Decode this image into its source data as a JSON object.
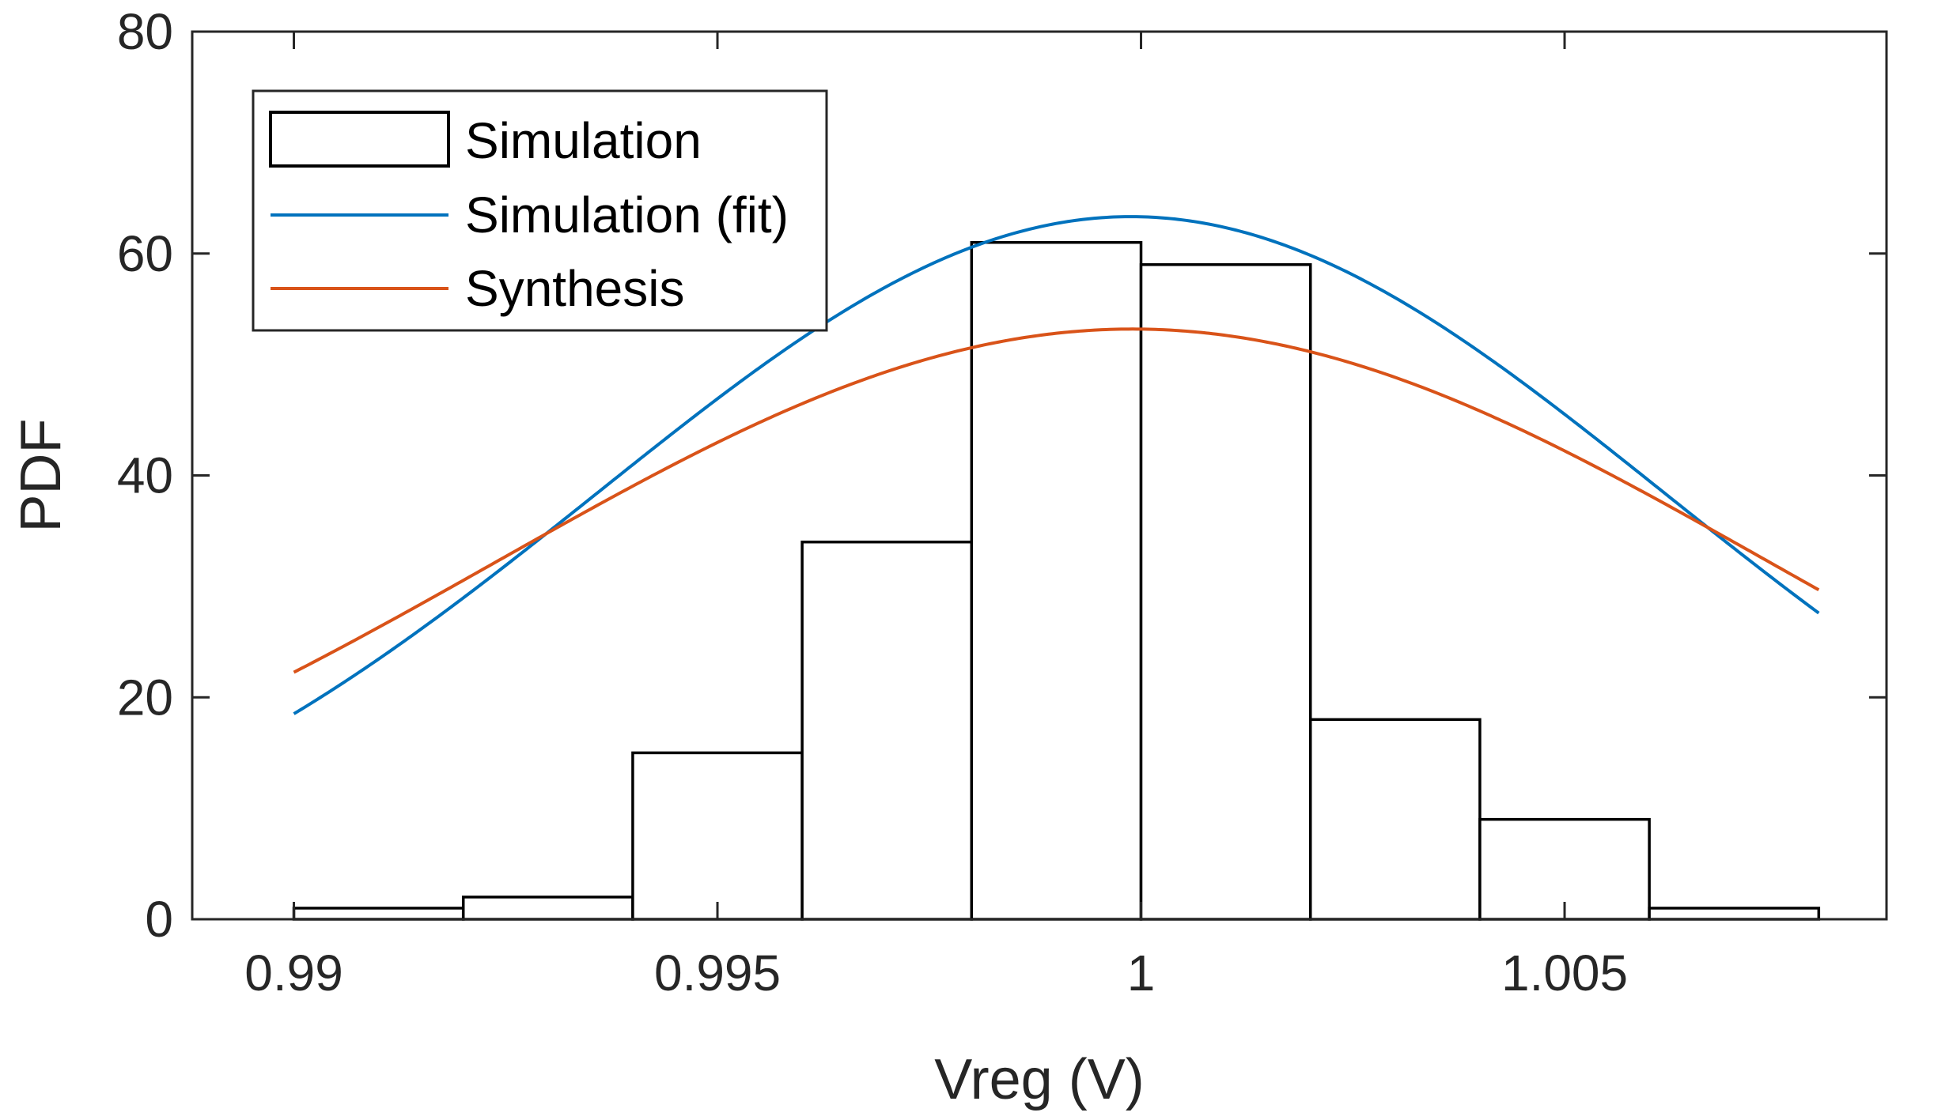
{
  "chart_data": {
    "type": "bar",
    "xlabel": "Vreg (V)",
    "ylabel": "PDF",
    "xlim": [
      0.9888,
      1.0088
    ],
    "ylim": [
      0,
      80
    ],
    "x_ticks": [
      0.99,
      0.995,
      1.0,
      1.005
    ],
    "x_tick_labels": [
      "0.99",
      "0.995",
      "1",
      "1.005"
    ],
    "y_ticks": [
      0,
      20,
      40,
      60,
      80
    ],
    "y_tick_labels": [
      "0",
      "20",
      "40",
      "60",
      "80"
    ],
    "grid": false,
    "legend_position": "top-left",
    "bin_edges": [
      0.99,
      0.992,
      0.994,
      0.996,
      0.998,
      1.0,
      1.002,
      1.004,
      1.006,
      1.008
    ],
    "histogram_values": [
      1,
      2,
      15,
      34,
      61,
      59,
      18,
      9,
      1
    ],
    "series": [
      {
        "name": "Simulation",
        "kind": "histogram",
        "color": "#000000"
      },
      {
        "name": "Simulation (fit)",
        "kind": "normal-pdf",
        "mean": 0.99988,
        "sigma": 0.0063,
        "color": "#0072BD"
      },
      {
        "name": "Synthesis",
        "kind": "normal-pdf",
        "mean": 0.9999,
        "sigma": 0.0075,
        "color": "#D95319"
      }
    ]
  }
}
